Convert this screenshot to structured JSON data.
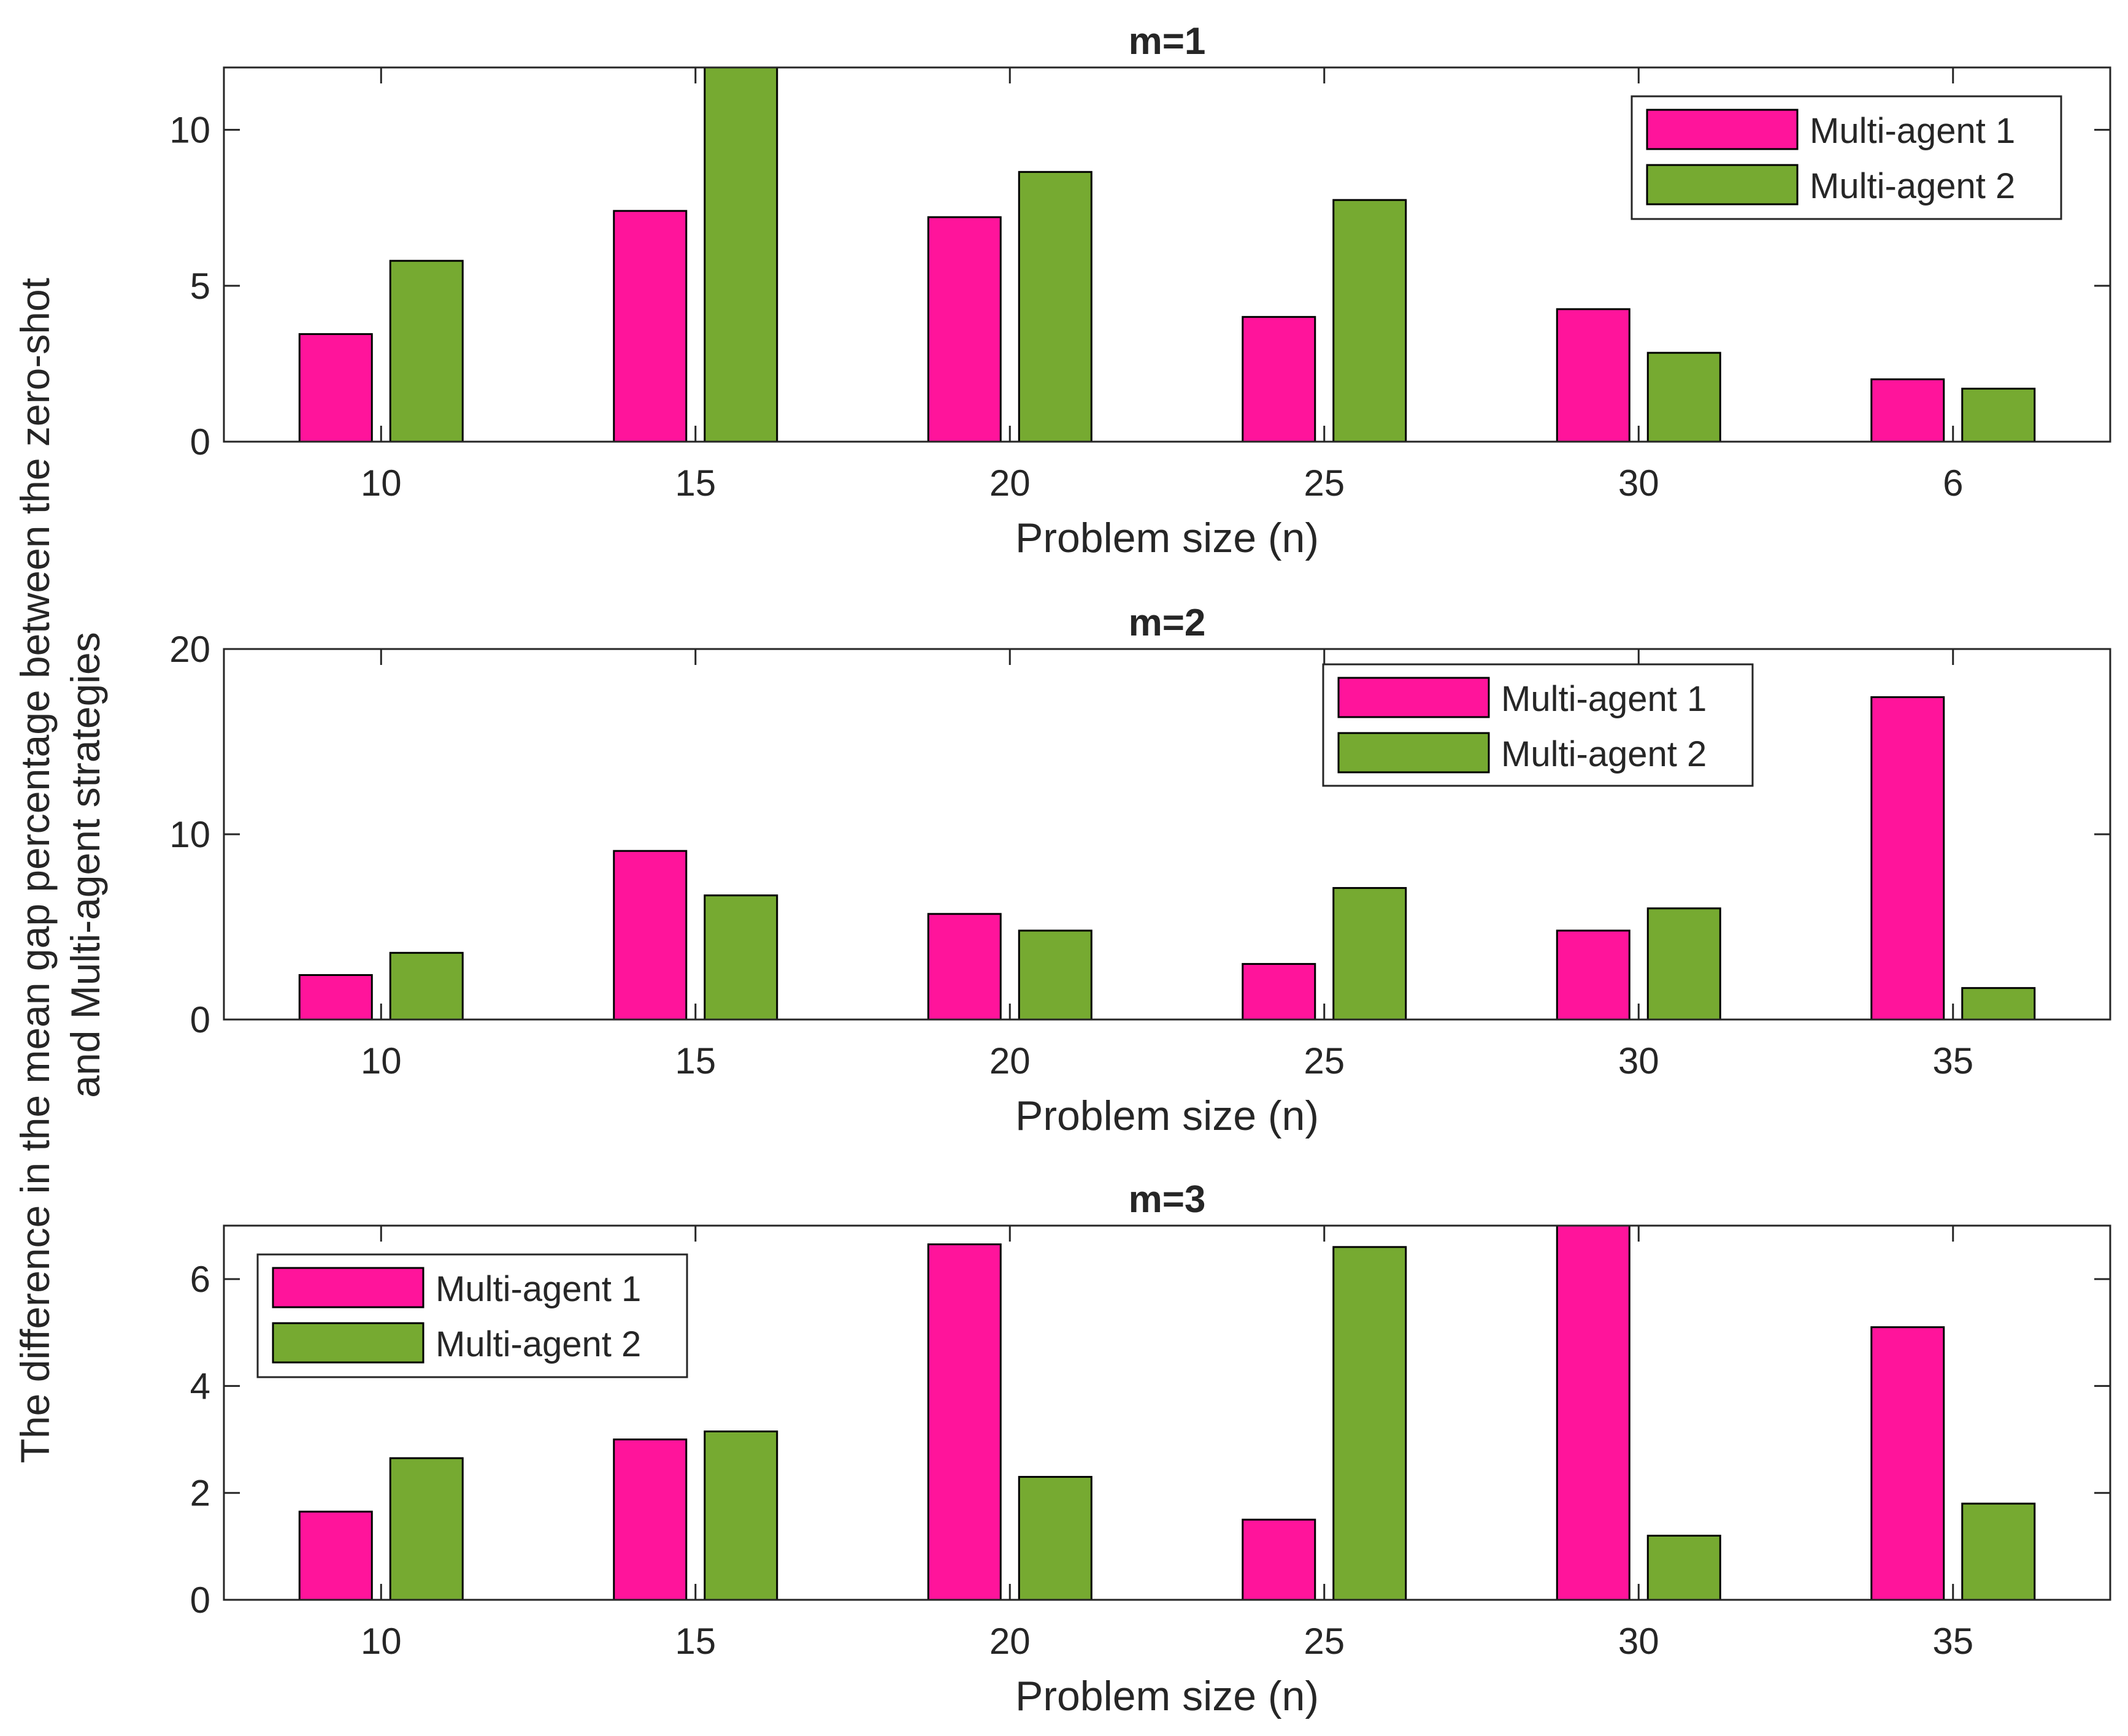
{
  "y_axis_label_line1": "The difference in the mean gap percentage between the zero-shot",
  "y_axis_label_line2": "and Multi-agent strategies",
  "colors": {
    "multi_agent_1": "#FF149B",
    "multi_agent_2": "#76AA31"
  },
  "chart_data": [
    {
      "type": "bar",
      "title": "m=1",
      "xlabel": "Problem size (n)",
      "ylabel": "",
      "categories": [
        "10",
        "15",
        "20",
        "25",
        "30",
        "6"
      ],
      "ylim": [
        0,
        12
      ],
      "yticks": [
        0,
        5,
        10
      ],
      "legend_position": "top-right",
      "series": [
        {
          "name": "Multi-agent 1",
          "values": [
            3.45,
            7.4,
            7.2,
            4.0,
            4.25,
            2.0
          ]
        },
        {
          "name": "Multi-agent 2",
          "values": [
            5.8,
            12.0,
            8.65,
            7.75,
            2.85,
            1.7
          ]
        }
      ]
    },
    {
      "type": "bar",
      "title": "m=2",
      "xlabel": "Problem size (n)",
      "ylabel": "",
      "categories": [
        "10",
        "15",
        "20",
        "25",
        "30",
        "35"
      ],
      "ylim": [
        0,
        20
      ],
      "yticks": [
        0,
        10,
        20
      ],
      "legend_position": "top-center-right",
      "series": [
        {
          "name": "Multi-agent 1",
          "values": [
            2.4,
            9.1,
            5.7,
            3.0,
            4.8,
            17.4
          ]
        },
        {
          "name": "Multi-agent 2",
          "values": [
            3.6,
            6.7,
            4.8,
            7.1,
            6.0,
            1.7
          ]
        }
      ]
    },
    {
      "type": "bar",
      "title": "m=3",
      "xlabel": "Problem size (n)",
      "ylabel": "",
      "categories": [
        "10",
        "15",
        "20",
        "25",
        "30",
        "35"
      ],
      "ylim": [
        0,
        7
      ],
      "yticks": [
        0,
        2,
        4,
        6
      ],
      "legend_position": "top-left",
      "series": [
        {
          "name": "Multi-agent 1",
          "values": [
            1.65,
            3.0,
            6.65,
            1.5,
            7.0,
            5.1
          ]
        },
        {
          "name": "Multi-agent 2",
          "values": [
            2.65,
            3.15,
            2.3,
            6.6,
            1.2,
            1.8
          ]
        }
      ]
    }
  ]
}
